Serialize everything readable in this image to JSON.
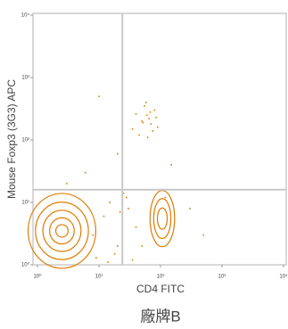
{
  "chart_data": {
    "type": "scatter",
    "x_label": "CD4 FITC",
    "y_label": "Mouse Foxp3 (3G3) APC",
    "caption": "廠牌B",
    "log_x": true,
    "log_y": true,
    "color": "#e07b00",
    "gate_color": "#c8c8c8",
    "xlim": [
      1,
      10000
    ],
    "ylim": [
      1,
      10000
    ],
    "xticks": [
      {
        "value": 1,
        "label": "10⁰"
      },
      {
        "value": 10,
        "label": "10¹"
      },
      {
        "value": 100,
        "label": "10²"
      },
      {
        "value": 1000,
        "label": "10³"
      },
      {
        "value": 10000,
        "label": "10⁴"
      }
    ],
    "yticks": [
      {
        "value": 1,
        "label": "10⁰"
      },
      {
        "value": 10,
        "label": "10¹"
      },
      {
        "value": 100,
        "label": "10²"
      },
      {
        "value": 1000,
        "label": "10³"
      },
      {
        "value": 10000,
        "label": "10⁴"
      }
    ],
    "gate_x": 24,
    "gate_y": 16,
    "x": [
      35,
      50,
      60,
      70,
      80,
      45,
      55,
      65,
      90,
      40,
      75,
      58,
      52,
      68,
      85,
      62,
      8,
      12,
      15,
      20,
      25,
      30,
      18,
      40,
      28,
      35,
      50,
      9,
      14,
      22,
      6,
      20,
      300,
      500,
      150,
      3,
      10,
      120
    ],
    "values": [
      150,
      200,
      250,
      180,
      300,
      120,
      350,
      220,
      160,
      260,
      140,
      400,
      190,
      280,
      230,
      110,
      3,
      6,
      10,
      2,
      14,
      8,
      1.5,
      4,
      12,
      1.2,
      2,
      1.3,
      1.1,
      7,
      30,
      60,
      8,
      3,
      40,
      20,
      500,
      12
    ],
    "contours": [
      {
        "x": 2.5,
        "y": 3.5,
        "rx": [
          0.55,
          0.43,
          0.31,
          0.2,
          0.1
        ],
        "ry": [
          0.6,
          0.46,
          0.33,
          0.21,
          0.1
        ]
      },
      {
        "x": 107,
        "y": 5.5,
        "rx": [
          0.2,
          0.14,
          0.08
        ],
        "ry": [
          0.45,
          0.32,
          0.17
        ]
      }
    ]
  }
}
